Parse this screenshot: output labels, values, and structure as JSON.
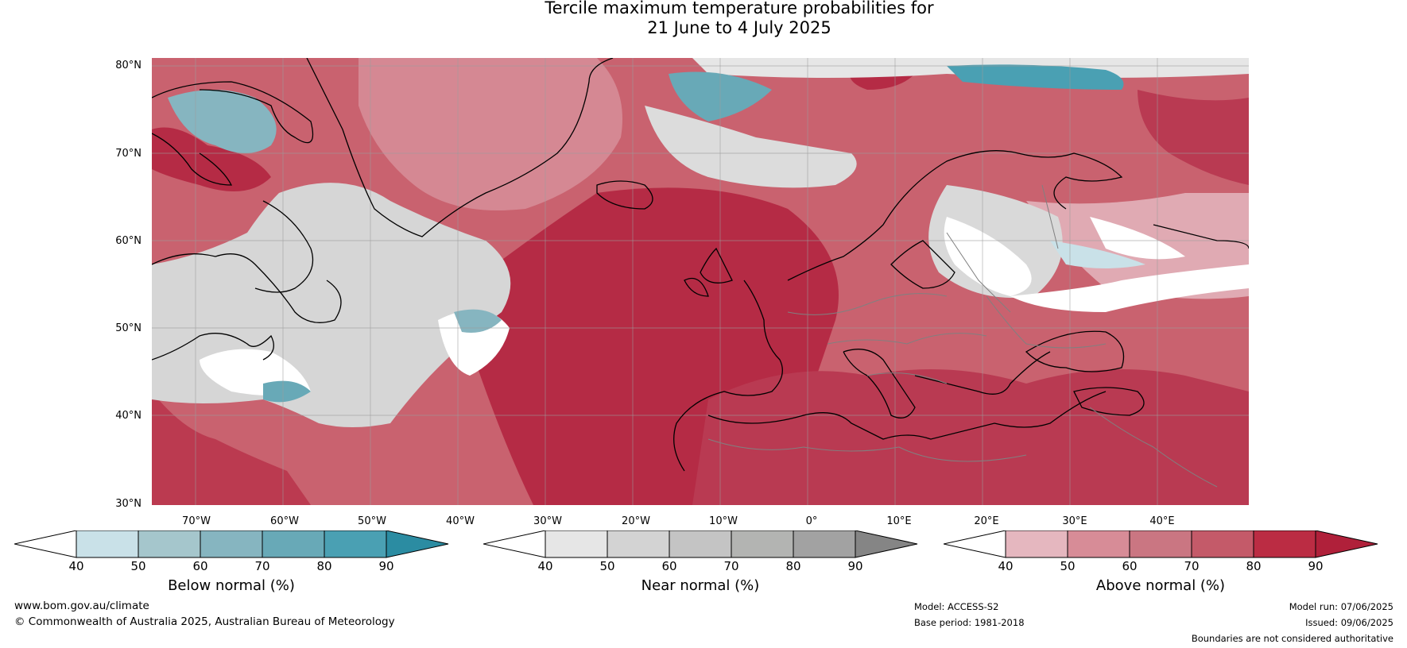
{
  "title": {
    "line1": "Tercile maximum temperature probabilities for",
    "line2": "21 June to 4 July 2025"
  },
  "map": {
    "latitude_labels": [
      "80°N",
      "70°N",
      "60°N",
      "50°N",
      "40°N",
      "30°N"
    ],
    "longitude_labels": [
      "70°W",
      "60°W",
      "50°W",
      "40°W",
      "30°W",
      "20°W",
      "10°W",
      "0°",
      "10°E",
      "20°E",
      "30°E",
      "40°E"
    ]
  },
  "legends": {
    "below": {
      "label": "Below normal (%)",
      "ticks": [
        "40",
        "50",
        "60",
        "70",
        "80",
        "90"
      ],
      "colors": [
        "#ffffff",
        "#c9e1e8",
        "#a5c6cc",
        "#86b5c0",
        "#68a9b7",
        "#4aa0b3",
        "#2b8ca2"
      ]
    },
    "near": {
      "label": "Near normal (%)",
      "ticks": [
        "40",
        "50",
        "60",
        "70",
        "80",
        "90"
      ],
      "colors": [
        "#ffffff",
        "#e6e6e6",
        "#d3d3d3",
        "#c4c4c4",
        "#b3b4b2",
        "#a2a2a2",
        "#858585"
      ]
    },
    "above": {
      "label": "Above normal (%)",
      "ticks": [
        "40",
        "50",
        "60",
        "70",
        "80",
        "90"
      ],
      "colors": [
        "#ffffff",
        "#e5b7bf",
        "#d78c97",
        "#ca7682",
        "#c45a69",
        "#bb2c43",
        "#b0203a"
      ]
    }
  },
  "footer": {
    "website": "www.bom.gov.au/climate",
    "copyright": "© Commonwealth of Australia 2025, Australian Bureau of Meteorology",
    "model": "Model: ACCESS-S2",
    "base_period": "Base period: 1981-2018",
    "model_run": "Model run: 07/06/2025",
    "issued": "Issued: 09/06/2025",
    "disclaimer": "Boundaries are not considered authoritative"
  }
}
